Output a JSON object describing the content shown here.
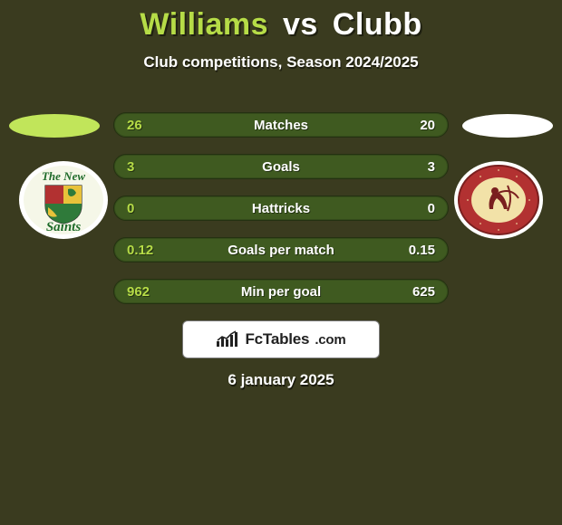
{
  "colors": {
    "background": "#3a3b1f",
    "player1": "#b6dc47",
    "player2": "#ffffff",
    "ellipse_p1": "#c1e55a",
    "ellipse_p2": "#ffffff",
    "row_bg": "#3f5a20",
    "row_border": "#2b3a14",
    "brand_bg": "#ffffff",
    "brand_fg": "#222222"
  },
  "header": {
    "player1": "Williams",
    "vs": "vs",
    "player2": "Clubb",
    "subtitle": "Club competitions, Season 2024/2025"
  },
  "stats": [
    {
      "label": "Matches",
      "p1": "26",
      "p2": "20"
    },
    {
      "label": "Goals",
      "p1": "3",
      "p2": "3"
    },
    {
      "label": "Hattricks",
      "p1": "0",
      "p2": "0"
    },
    {
      "label": "Goals per match",
      "p1": "0.12",
      "p2": "0.15"
    },
    {
      "label": "Min per goal",
      "p1": "962",
      "p2": "625"
    }
  ],
  "brand": {
    "name": "FcTables",
    "suffix": ".com"
  },
  "footer": {
    "date": "6 january 2025"
  },
  "logos": {
    "left": {
      "outer_ring": "#ffffff",
      "inner_ring": "#f5f7e8",
      "top_text": "The New",
      "bottom_text": "Saints",
      "text_color": "#1f6b2a",
      "shield_red": "#b23131",
      "shield_green": "#2f7a3a",
      "shield_gold": "#e8c23a"
    },
    "right": {
      "outer_ring": "#ffffff",
      "ring_color": "#b23131",
      "ring_border": "#7a1f1f",
      "inner_disc": "#f2e2a8",
      "archer_color": "#7a1f1f"
    }
  }
}
